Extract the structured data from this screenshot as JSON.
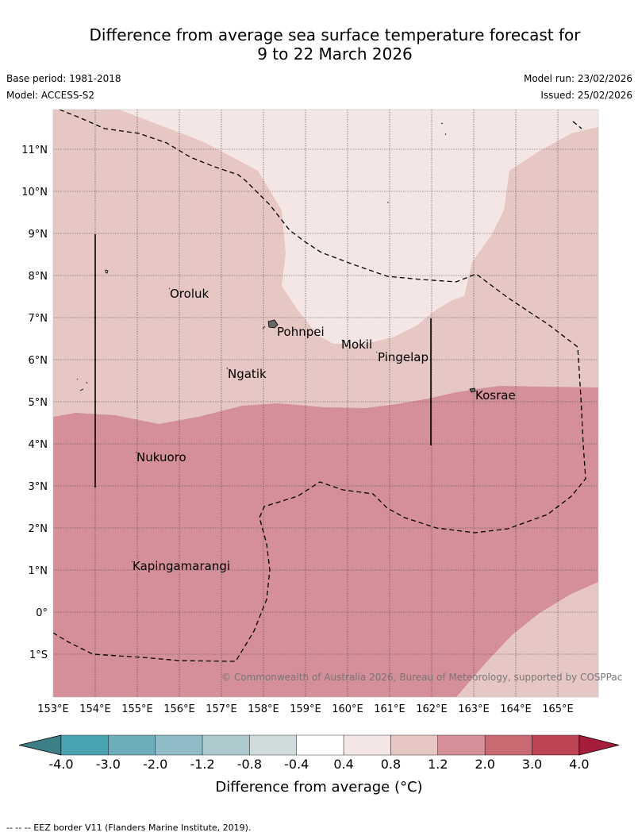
{
  "header": {
    "title_line1": "Difference from average sea surface temperature forecast for",
    "title_line2": "9 to 22 March 2026",
    "base_period": "Base period: 1981-2018",
    "model": "Model: ACCESS-S2",
    "model_run": "Model run: 23/02/2026",
    "issued": "Issued: 25/02/2026"
  },
  "map": {
    "lon_labels": [
      "153°E",
      "154°E",
      "155°E",
      "156°E",
      "157°E",
      "158°E",
      "159°E",
      "160°E",
      "161°E",
      "162°E",
      "163°E",
      "164°E",
      "165°E"
    ],
    "lat_labels": [
      "11°N",
      "10°N",
      "9°N",
      "8°N",
      "7°N",
      "6°N",
      "5°N",
      "4°N",
      "3°N",
      "2°N",
      "1°N",
      "0°",
      "1°S"
    ],
    "places": [
      "Oroluk",
      "Pohnpei",
      "Mokil",
      "Pingelap",
      "Ngatik",
      "Kosrae",
      "Nukuoro",
      "Kapingamarangi"
    ],
    "credit": "© Commonwealth of Australia 2026, Bureau of Meteorology, supported by COSPPac",
    "colors": {
      "band_04_08": "#f3e6e5",
      "band_08_12": "#e7c7c3",
      "band_12_20": "#d48f98",
      "coast": "#000000",
      "grid": "#444444"
    }
  },
  "colorbar": {
    "ticks": [
      "-4.0",
      "-3.0",
      "-2.0",
      "-1.2",
      "-0.8",
      "-0.4",
      "0.4",
      "0.8",
      "1.2",
      "2.0",
      "3.0",
      "4.0"
    ],
    "colors": [
      "#3d7f87",
      "#4aa3b2",
      "#6eaebc",
      "#8fbcc6",
      "#accace",
      "#cfdbdc",
      "#ffffff",
      "#f3e6e5",
      "#e7c7c3",
      "#d48f98",
      "#c96a73",
      "#bd4556",
      "#a51d3a"
    ],
    "label": "Difference from average (°C)"
  },
  "footer": {
    "eez_legend": "-- -- -- EEZ border V11 (Flanders Marine Institute, 2019)."
  }
}
